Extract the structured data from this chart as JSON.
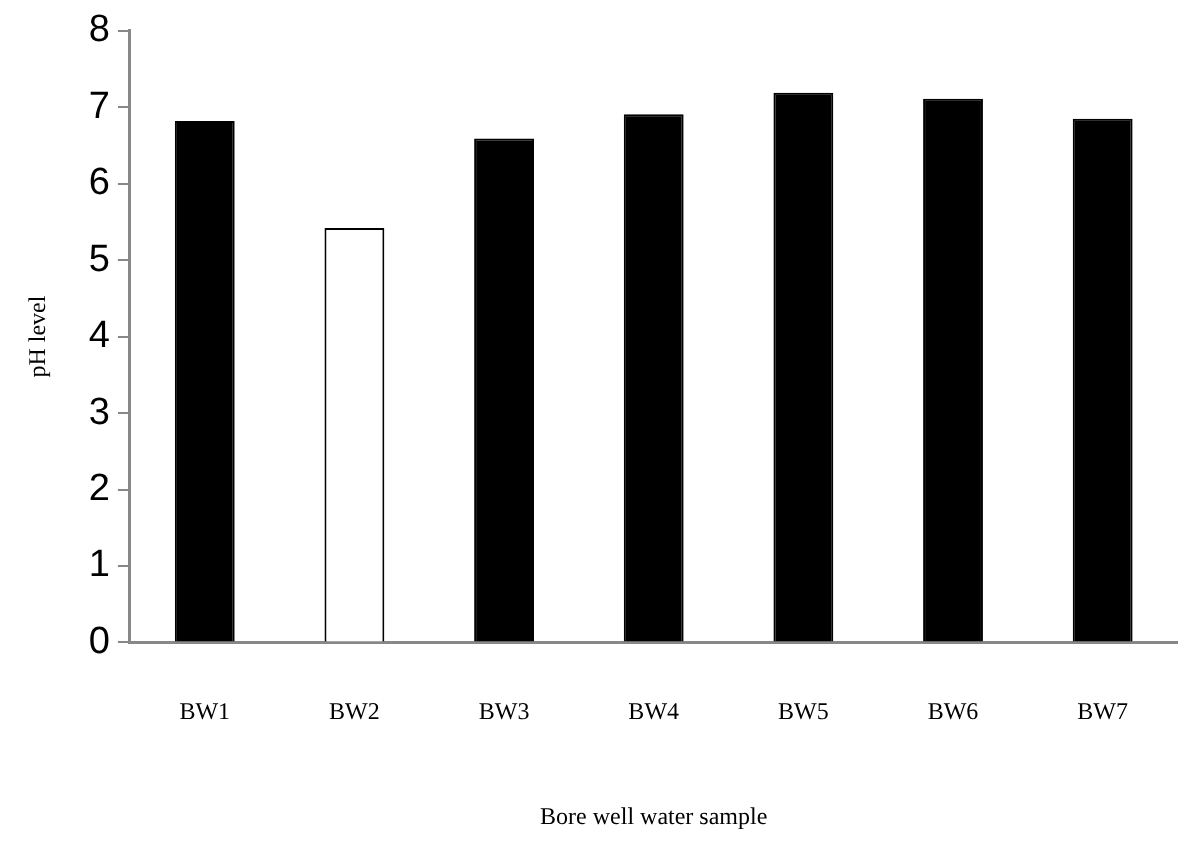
{
  "chart_data": {
    "type": "bar",
    "xlabel": "Bore well water sample",
    "ylabel": "pH level",
    "categories": [
      "BW1",
      "BW2",
      "BW3",
      "BW4",
      "BW5",
      "BW6",
      "BW7"
    ],
    "values": [
      6.82,
      5.42,
      6.59,
      6.91,
      7.19,
      7.11,
      6.85
    ],
    "colors": [
      "#000000",
      "#ffffff",
      "#000000",
      "#000000",
      "#000000",
      "#000000",
      "#000000"
    ],
    "ylim": [
      0,
      8
    ],
    "yticks": [
      0,
      1,
      2,
      3,
      4,
      5,
      6,
      7,
      8
    ],
    "grid": false,
    "legend": false
  }
}
